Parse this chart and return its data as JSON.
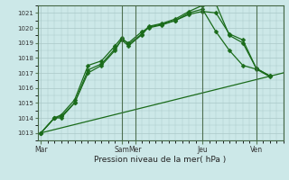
{
  "title": "",
  "xlabel": "Pression niveau de la mer( hPa )",
  "ylabel": "",
  "bg_color": "#cce8e8",
  "grid_color": "#aac8c8",
  "line_color": "#1a6b1a",
  "ylim": [
    1012.5,
    1021.5
  ],
  "yticks": [
    1013,
    1014,
    1015,
    1016,
    1017,
    1018,
    1019,
    1020,
    1021
  ],
  "day_labels": [
    "Mar",
    "Sam",
    "Mer",
    "Jeu",
    "Ven"
  ],
  "day_positions": [
    0,
    12,
    14,
    24,
    32
  ],
  "xlim": [
    -0.5,
    36
  ],
  "series1_x": [
    0,
    2,
    3,
    5,
    7,
    9,
    11,
    12,
    13,
    15,
    16,
    18,
    20,
    22,
    24,
    26,
    28,
    30,
    32,
    34
  ],
  "series1_y": [
    1013,
    1014,
    1014,
    1015,
    1017,
    1017.5,
    1018.5,
    1019.25,
    1019.0,
    1019.75,
    1020.0,
    1020.2,
    1020.5,
    1021.0,
    1021.25,
    1019.75,
    1018.5,
    1017.5,
    1017.25,
    1016.75
  ],
  "series2_x": [
    0,
    2,
    3,
    5,
    7,
    9,
    11,
    12,
    13,
    15,
    16,
    18,
    20,
    22,
    24,
    26,
    28,
    30,
    32,
    34
  ],
  "series2_y": [
    1013,
    1014,
    1014.2,
    1015.2,
    1017.5,
    1017.8,
    1018.8,
    1019.35,
    1018.9,
    1019.6,
    1020.1,
    1020.3,
    1020.6,
    1021.1,
    1021.5,
    1021.6,
    1019.5,
    1019.0,
    1017.3,
    1016.8
  ],
  "series3_x": [
    0,
    2,
    3,
    5,
    7,
    9,
    11,
    12,
    13,
    15,
    16,
    18,
    20,
    22,
    24,
    26,
    28,
    30,
    32,
    34
  ],
  "series3_y": [
    1013,
    1014,
    1014.1,
    1015.0,
    1017.2,
    1017.6,
    1018.6,
    1019.2,
    1018.8,
    1019.55,
    1020.05,
    1020.25,
    1020.5,
    1020.9,
    1021.1,
    1021.0,
    1019.6,
    1019.2,
    1017.3,
    1016.8
  ],
  "series4_x": [
    0,
    36
  ],
  "series4_y": [
    1013,
    1017.0
  ],
  "vline_positions": [
    12,
    14,
    24,
    32
  ]
}
